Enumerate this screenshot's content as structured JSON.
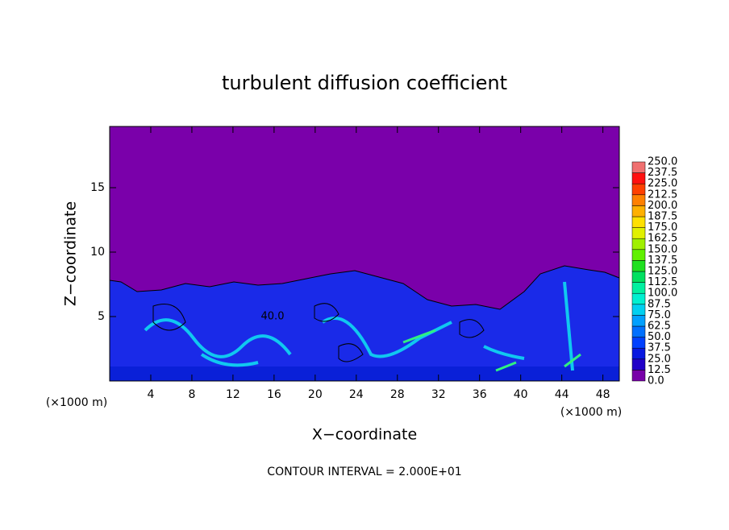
{
  "chart_data": {
    "type": "heatmap",
    "title": "turbulent diffusion coefficient",
    "xlabel": "X−coordinate",
    "ylabel": "Z−coordinate",
    "x_unit": "(×1000 m)",
    "y_unit": "(×1000 m)",
    "annotation": "40.0",
    "footnote": "CONTOUR INTERVAL = 2.000E+01",
    "xlim": [
      0,
      49.6
    ],
    "ylim": [
      0,
      19.75
    ],
    "xticks": [
      4,
      8,
      12,
      16,
      20,
      24,
      28,
      32,
      36,
      40,
      44,
      48
    ],
    "yticks": [
      5,
      10,
      15
    ],
    "colorbar": {
      "levels": [
        {
          "value": 0,
          "label": "0.0"
        },
        12.5,
        {
          "value": 25,
          "label": "25.0"
        },
        37.5,
        {
          "value": 50,
          "label": "50.0"
        },
        62.5,
        {
          "value": 75,
          "label": "75.0"
        },
        87.5,
        {
          "value": 100,
          "label": "100.0"
        },
        112.5,
        {
          "value": 125,
          "label": "125.0"
        },
        137.5,
        {
          "value": 150,
          "label": "150.0"
        },
        162.5,
        {
          "value": 175,
          "label": "175.0"
        },
        187.5,
        {
          "value": 200,
          "label": "200.0"
        },
        212.5,
        {
          "value": 225,
          "label": "225.0"
        },
        237.5,
        {
          "value": 250,
          "label": "250.0"
        }
      ],
      "colors": [
        "#7800a8",
        "#2000c8",
        "#0818e0",
        "#0040ff",
        "#0070ff",
        "#00a0ff",
        "#00d0f0",
        "#00f0d0",
        "#00f0a0",
        "#00e060",
        "#20e020",
        "#60f000",
        "#a0f000",
        "#e0f000",
        "#ffe000",
        "#ffb000",
        "#ff8000",
        "#ff4000",
        "#ff1010",
        "#f07070"
      ]
    }
  }
}
